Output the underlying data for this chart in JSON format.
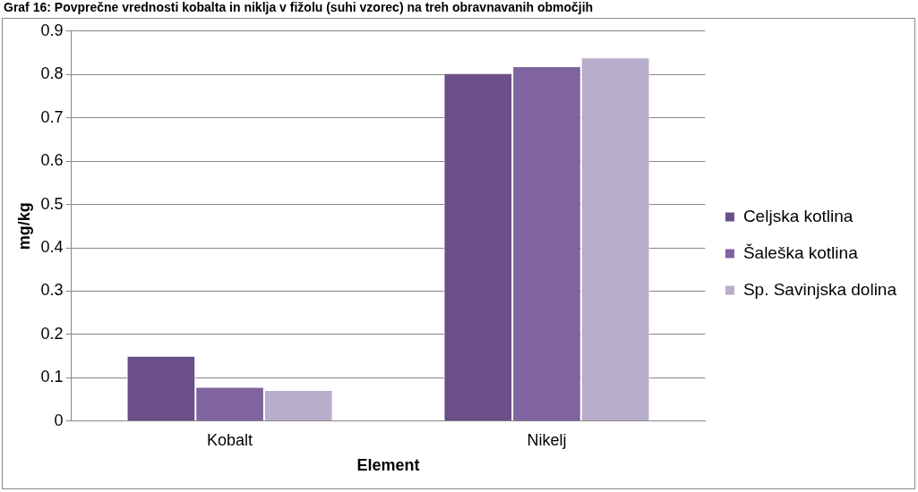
{
  "chart_data": {
    "type": "bar",
    "title": "Graf 16: Povprečne vrednosti kobalta in niklja v fižolu (suhi vzorec) na treh obravnavanih območjih",
    "xlabel": "Element",
    "ylabel": "mg/kg",
    "categories": [
      "Kobalt",
      "Nikelj"
    ],
    "series": [
      {
        "name": "Celjska kotlina",
        "color": "#6a4f88",
        "values": [
          0.151,
          0.803
        ]
      },
      {
        "name": "Šaleška kotlina",
        "color": "#8064a0",
        "values": [
          0.079,
          0.819
        ]
      },
      {
        "name": "Sp. Savinjska dolina",
        "color": "#b8adca",
        "values": [
          0.072,
          0.839
        ]
      }
    ],
    "ylim": [
      0,
      0.9
    ],
    "yticks": [
      0,
      0.1,
      0.2,
      0.3,
      0.4,
      0.5,
      0.6,
      0.7,
      0.8,
      0.9
    ],
    "grid": "y",
    "legend": "right"
  }
}
